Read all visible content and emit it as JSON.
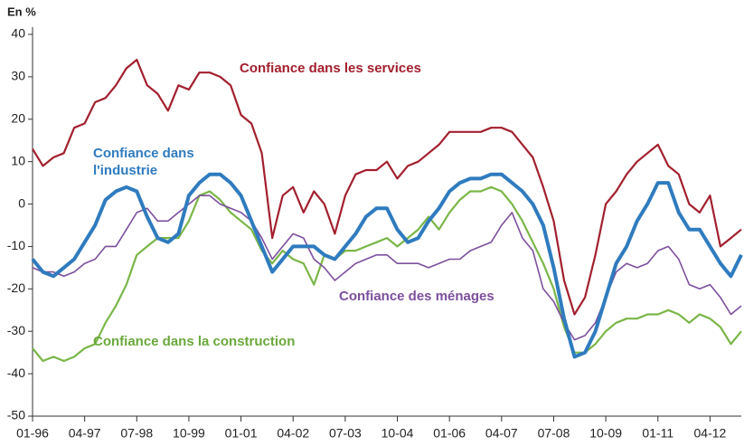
{
  "chart_data": {
    "type": "line",
    "ylabel": "En %",
    "x": [
      "01-96",
      "04-96",
      "07-96",
      "10-96",
      "01-97",
      "04-97",
      "07-97",
      "10-97",
      "01-98",
      "04-98",
      "07-98",
      "10-98",
      "01-99",
      "04-99",
      "07-99",
      "10-99",
      "01-00",
      "04-00",
      "07-00",
      "10-00",
      "01-01",
      "04-01",
      "07-01",
      "10-01",
      "01-02",
      "04-02",
      "07-02",
      "10-02",
      "01-03",
      "04-03",
      "07-03",
      "10-03",
      "01-04",
      "04-04",
      "07-04",
      "10-04",
      "01-05",
      "04-05",
      "07-05",
      "10-05",
      "01-06",
      "04-06",
      "07-06",
      "10-06",
      "01-07",
      "04-07",
      "07-07",
      "10-07",
      "01-08",
      "04-08",
      "07-08",
      "10-08",
      "01-09",
      "04-09",
      "07-09",
      "10-09",
      "01-10",
      "04-10",
      "07-10",
      "10-10",
      "01-11",
      "04-11",
      "07-11",
      "10-11",
      "01-12",
      "04-12",
      "07-12",
      "10-12",
      "01-13"
    ],
    "series": [
      {
        "name": "Confiance dans les services",
        "color": "#a3202e",
        "width": 2.2,
        "values": [
          13,
          9,
          11,
          12,
          18,
          19,
          24,
          25,
          28,
          32,
          34,
          28,
          26,
          22,
          28,
          27,
          31,
          31,
          30,
          28,
          21,
          19,
          12,
          -8,
          2,
          4,
          -2,
          3,
          0,
          -7,
          2,
          7,
          8,
          8,
          10,
          6,
          9,
          10,
          12,
          14,
          17,
          17,
          17,
          17,
          18,
          18,
          17,
          14,
          11,
          4,
          -4,
          -18,
          -26,
          -22,
          -12,
          0,
          3,
          7,
          10,
          12,
          14,
          9,
          7,
          0,
          -2,
          2,
          -10,
          -8,
          -6
        ]
      },
      {
        "name": "Confiance dans l'industrie",
        "color": "#2f7bbf",
        "width": 4,
        "values": [
          -13,
          -16,
          -17,
          -15,
          -13,
          -9,
          -5,
          1,
          3,
          4,
          3,
          -3,
          -8,
          -9,
          -7,
          2,
          5,
          7,
          7,
          5,
          2,
          -4,
          -10,
          -16,
          -13,
          -10,
          -10,
          -10,
          -12,
          -13,
          -10,
          -7,
          -3,
          -1,
          -1,
          -6,
          -9,
          -8,
          -4,
          -1,
          3,
          5,
          6,
          6,
          7,
          7,
          5,
          3,
          0,
          -5,
          -15,
          -27,
          -36,
          -35,
          -30,
          -22,
          -14,
          -10,
          -4,
          0,
          5,
          5,
          -2,
          -6,
          -6,
          -10,
          -14,
          -17,
          -12
        ]
      },
      {
        "name": "Confiance des ménages",
        "color": "#7d4f9e",
        "width": 1.6,
        "values": [
          -15,
          -16,
          -16,
          -17,
          -16,
          -14,
          -13,
          -10,
          -10,
          -6,
          -2,
          -1,
          -4,
          -4,
          -2,
          0,
          2,
          2,
          0,
          -1,
          -2,
          -4,
          -8,
          -13,
          -10,
          -7,
          -8,
          -13,
          -15,
          -18,
          -16,
          -14,
          -13,
          -12,
          -12,
          -14,
          -14,
          -14,
          -15,
          -14,
          -13,
          -13,
          -11,
          -10,
          -9,
          -5,
          -2,
          -8,
          -11,
          -20,
          -23,
          -28,
          -32,
          -31,
          -28,
          -22,
          -16,
          -14,
          -15,
          -14,
          -11,
          -10,
          -13,
          -19,
          -20,
          -19,
          -22,
          -26,
          -24
        ]
      },
      {
        "name": "Confiance dans la construction",
        "color": "#7ab648",
        "width": 2.2,
        "values": [
          -34,
          -37,
          -36,
          -37,
          -36,
          -34,
          -33,
          -28,
          -24,
          -19,
          -12,
          -10,
          -8,
          -8,
          -8,
          -4,
          2,
          3,
          1,
          -2,
          -4,
          -6,
          -11,
          -14,
          -11,
          -13,
          -14,
          -19,
          -12,
          -13,
          -11,
          -11,
          -10,
          -9,
          -8,
          -10,
          -8,
          -6,
          -3,
          -6,
          -2,
          1,
          3,
          3,
          4,
          3,
          0,
          -4,
          -9,
          -14,
          -20,
          -29,
          -35,
          -35,
          -33,
          -30,
          -28,
          -27,
          -27,
          -26,
          -26,
          -25,
          -26,
          -28,
          -26,
          -27,
          -29,
          -33,
          -30
        ]
      }
    ],
    "xlim": [
      "01-96",
      "01-13"
    ],
    "xticks": [
      "01-96",
      "04-97",
      "07-98",
      "10-99",
      "01-01",
      "04-02",
      "07-03",
      "10-04",
      "01-06",
      "04-07",
      "07-08",
      "10-09",
      "01-11",
      "04-12"
    ],
    "ylim": [
      -50,
      40
    ],
    "yticks": [
      -50,
      -40,
      -30,
      -20,
      -10,
      0,
      10,
      20,
      30,
      40
    ]
  }
}
